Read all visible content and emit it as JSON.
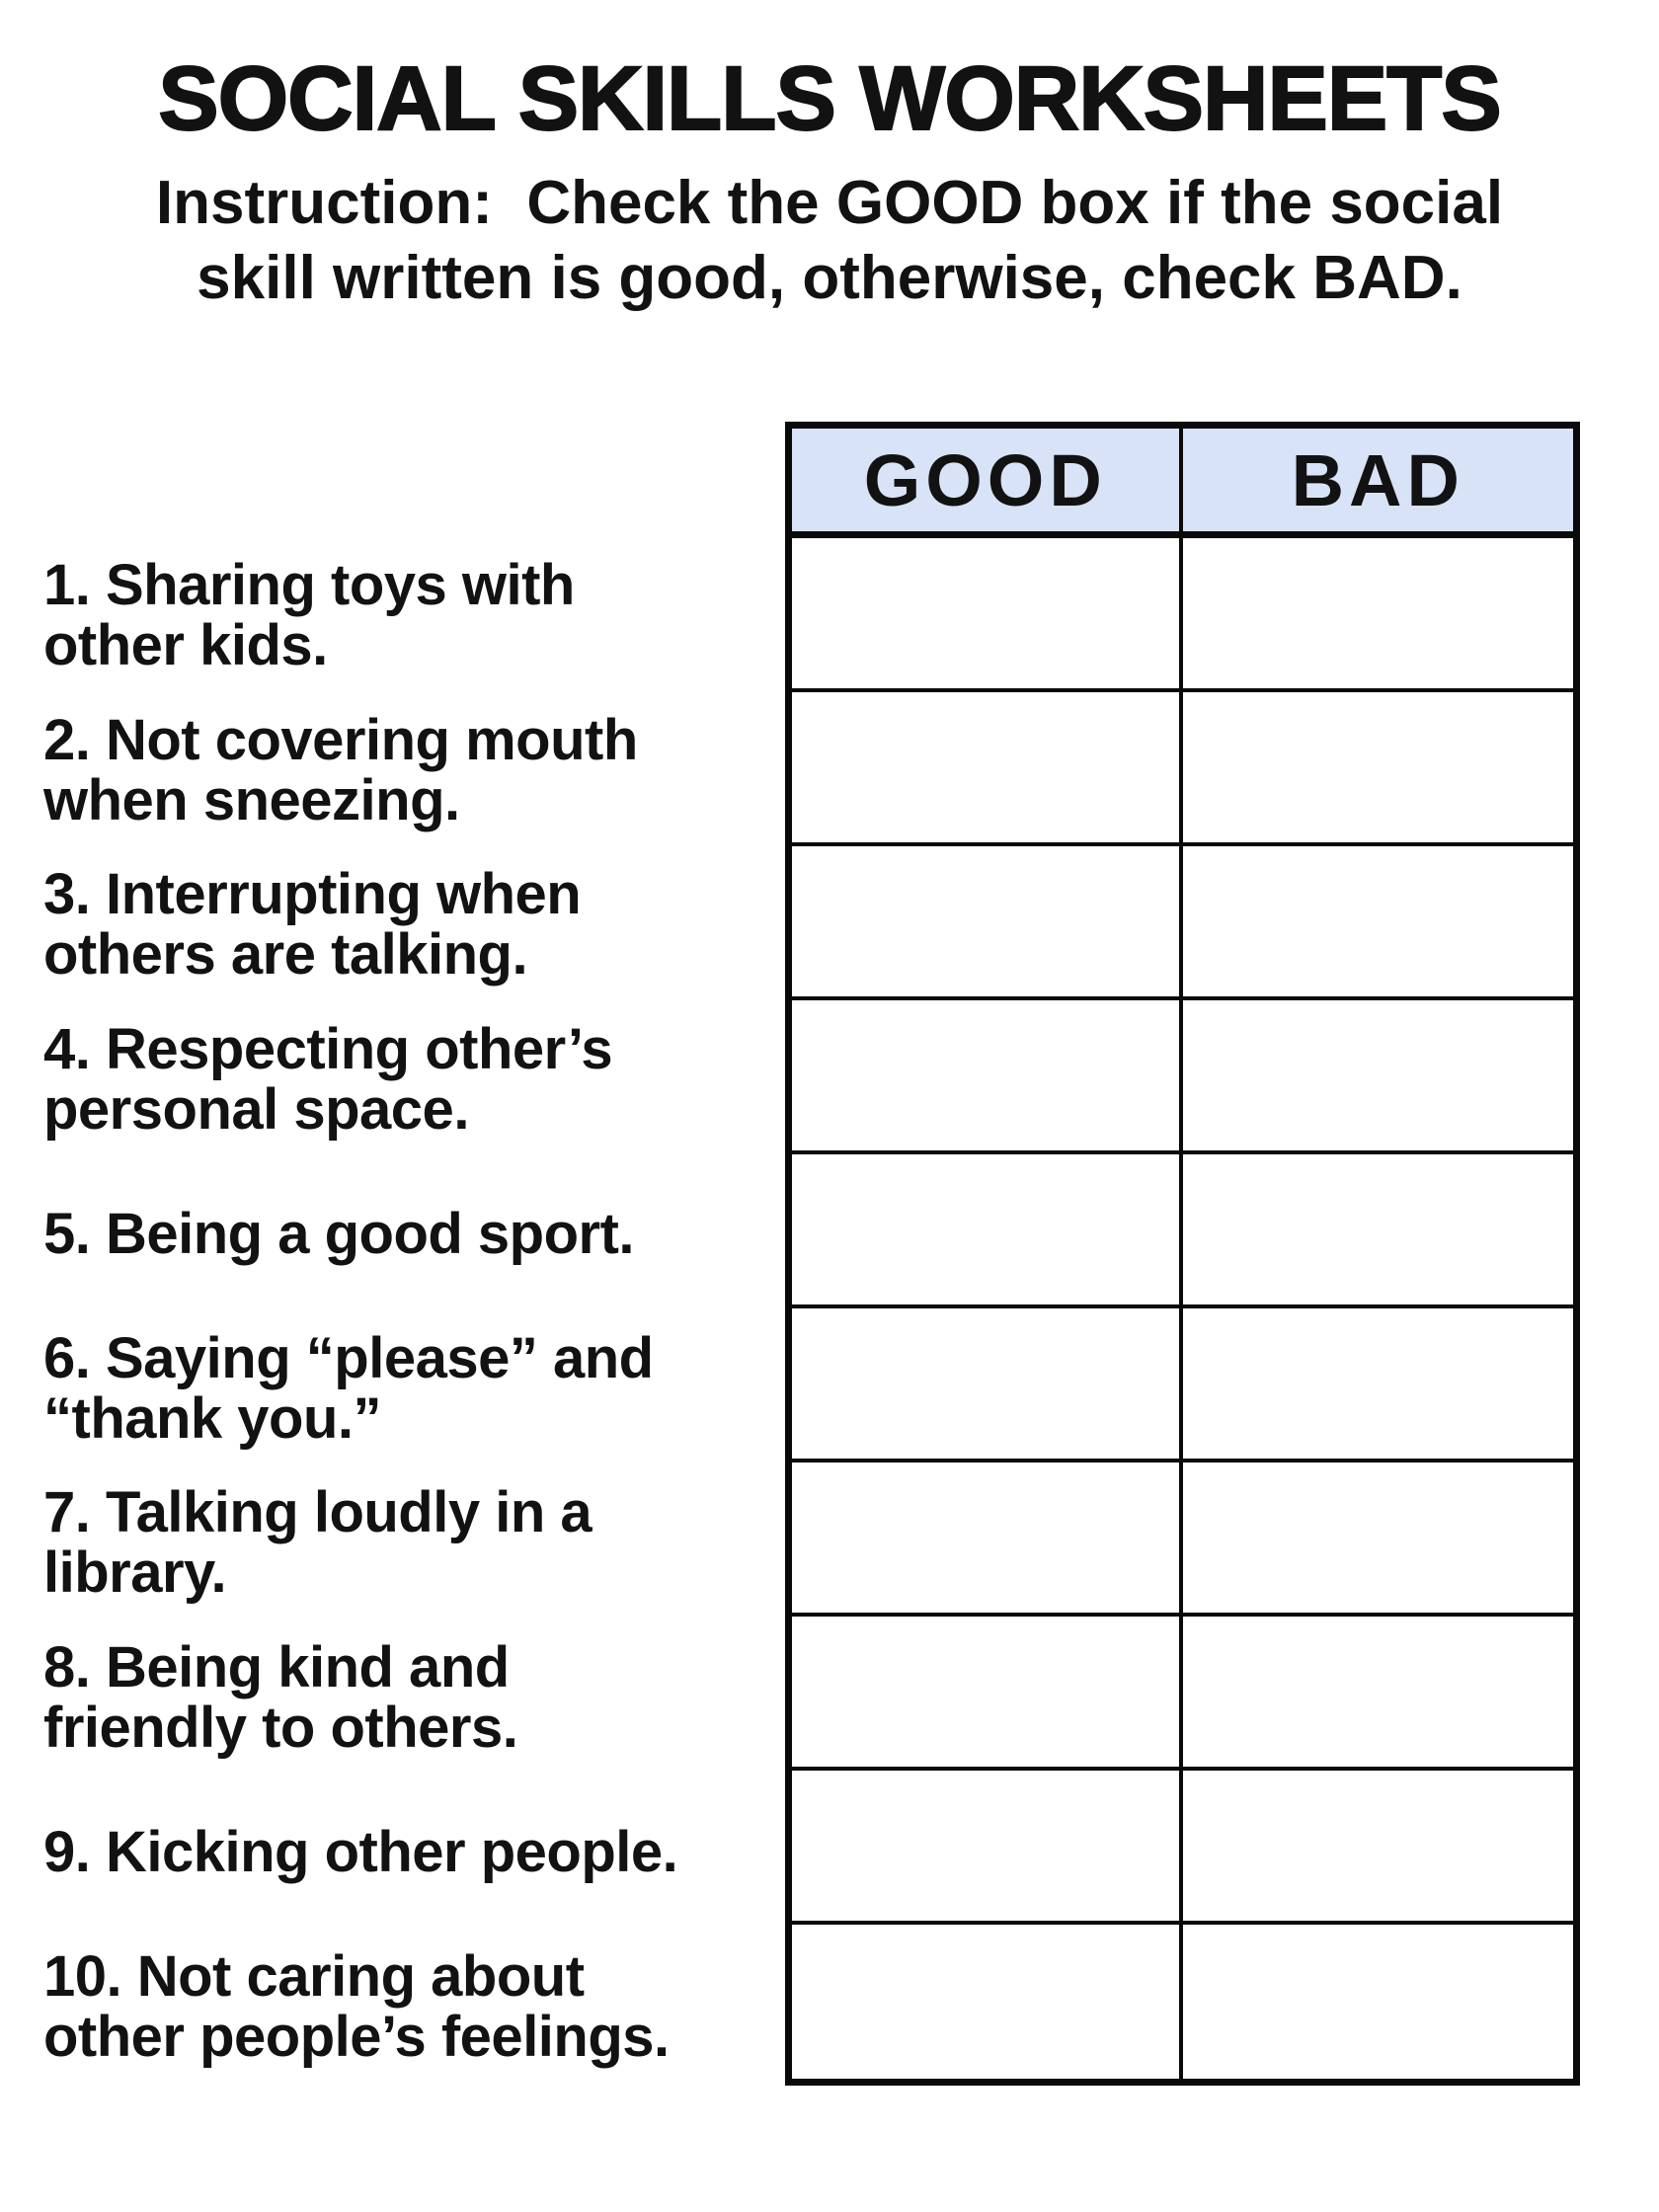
{
  "header": {
    "title": "SOCIAL SKILLS WORKSHEETS",
    "instruction_lines": [
      "Instruction:  Check the GOOD box if the social",
      "skill written is good, otherwise, check BAD."
    ]
  },
  "table": {
    "columns": [
      "GOOD",
      "BAD"
    ],
    "row_count": 10,
    "header_bg_color": "#d8e3f7",
    "border_color": "#0a0a0a"
  },
  "items": [
    {
      "lines": [
        "1. Sharing toys with",
        "other kids."
      ]
    },
    {
      "lines": [
        "2. Not covering mouth",
        "when sneezing."
      ]
    },
    {
      "lines": [
        "3. Interrupting when",
        "others are talking."
      ]
    },
    {
      "lines": [
        "4. Respecting other’s",
        "personal space."
      ]
    },
    {
      "lines": [
        "5. Being a good sport."
      ]
    },
    {
      "lines": [
        "6. Saying “please” and",
        "“thank you.”"
      ]
    },
    {
      "lines": [
        "7. Talking loudly in a",
        "library."
      ]
    },
    {
      "lines": [
        "8. Being kind and",
        "friendly to others."
      ]
    },
    {
      "lines": [
        "9. Kicking other people."
      ]
    },
    {
      "lines": [
        "10. Not caring about",
        "other people’s feelings."
      ]
    }
  ]
}
